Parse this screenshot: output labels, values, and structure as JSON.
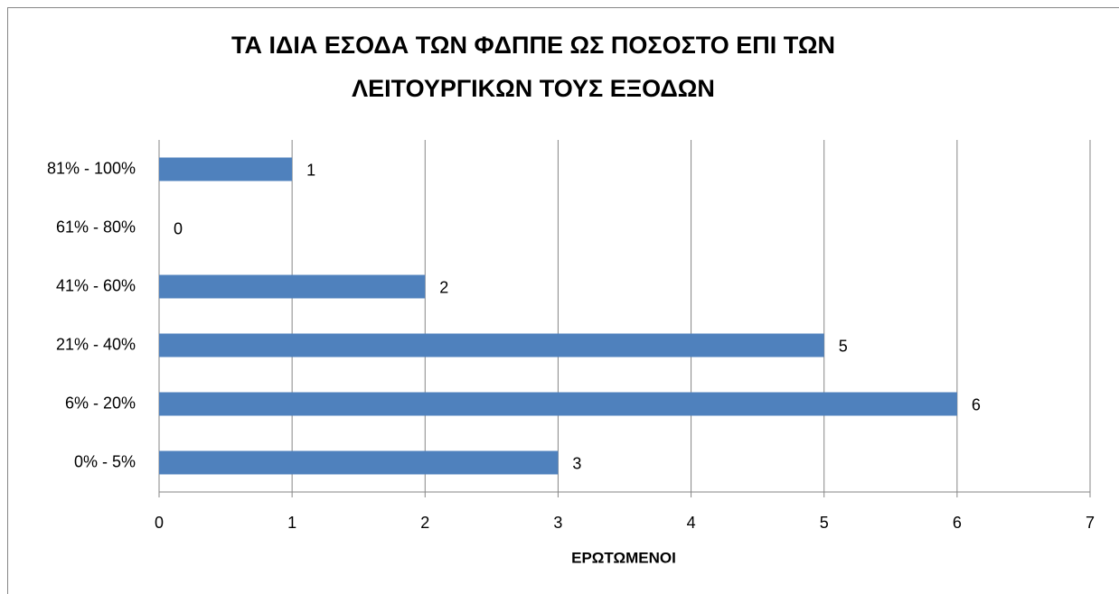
{
  "chart_data": {
    "type": "hbar",
    "title": [
      "ΤΑ ΙΔΙΑ ΕΣΟΔΑ ΤΩΝ ΦΔΠΠΕ ΩΣ ΠΟΣΟΣΤΟ ΕΠΙ ΤΩΝ",
      "ΛΕΙΤΟΥΡΓΙΚΩΝ ΤΟΥΣ ΕΞΟΔΩΝ"
    ],
    "x_label": "ΕΡΩΤΩΜΕΝΟΙ",
    "categories": [
      "81% - 100%",
      "61% - 80%",
      "41% - 60%",
      "21% - 40%",
      "6% - 20%",
      "0% - 5%"
    ],
    "values": [
      1,
      0,
      2,
      5,
      6,
      3
    ],
    "color": "#4f81bd",
    "xlim": [
      0,
      7
    ],
    "xticks": [
      0,
      1,
      2,
      3,
      4,
      5,
      6,
      7
    ],
    "grid": true
  }
}
